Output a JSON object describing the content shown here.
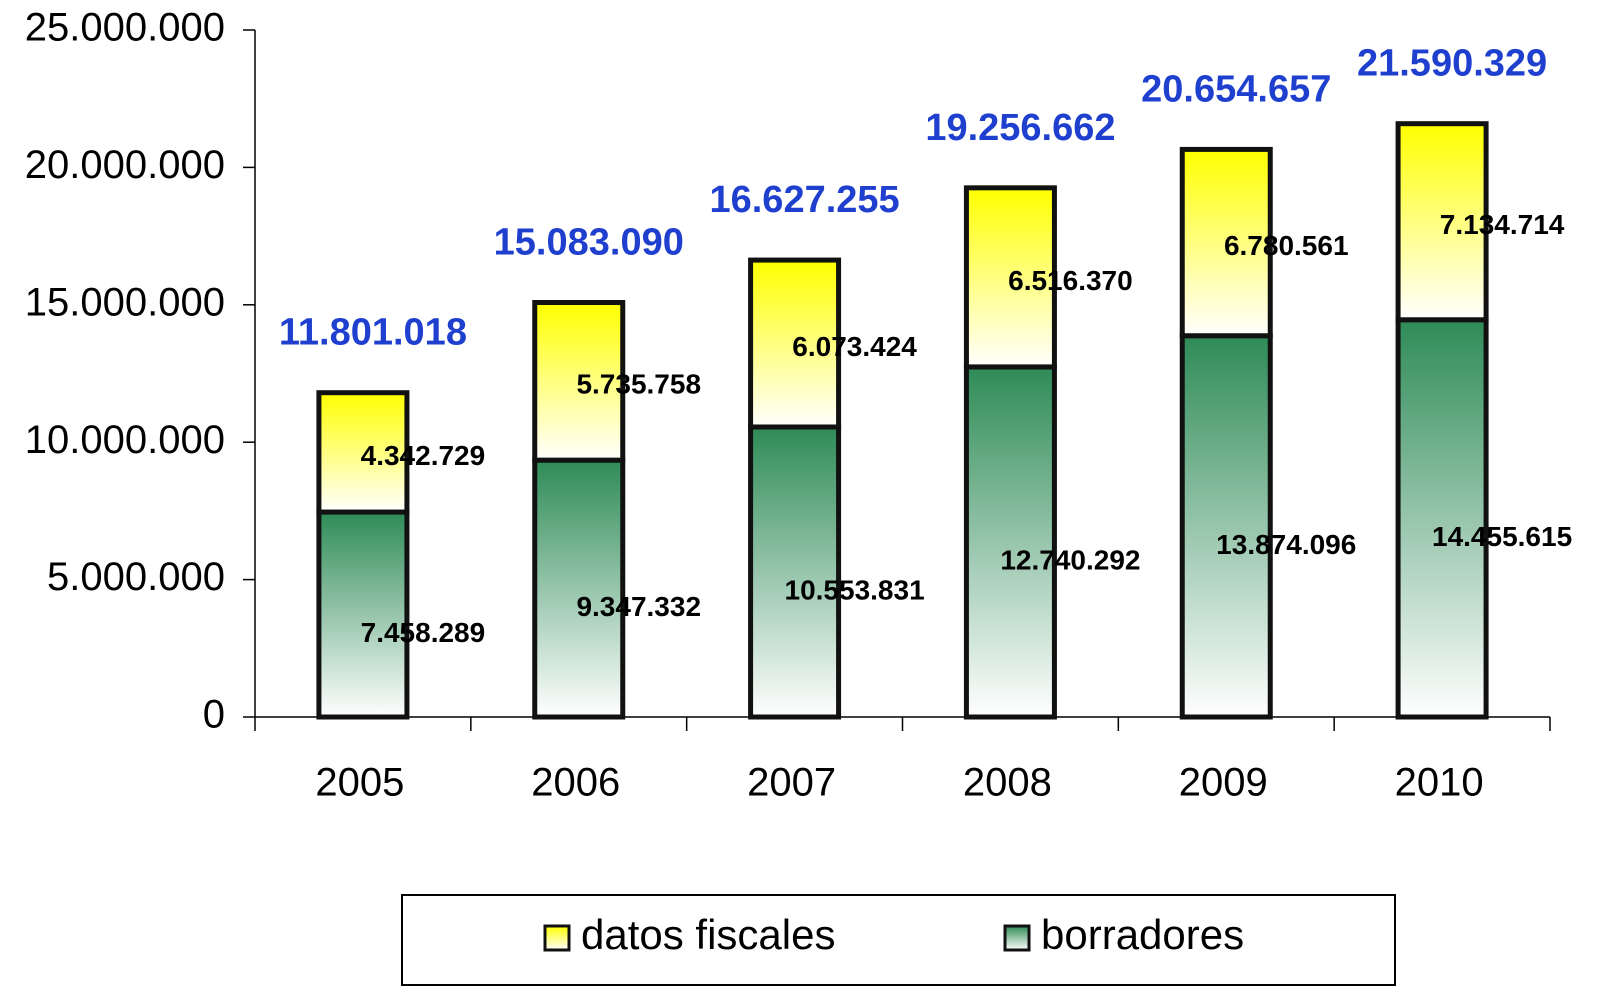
{
  "chart_data": {
    "type": "stacked_bar",
    "categories": [
      "2005",
      "2006",
      "2007",
      "2008",
      "2009",
      "2010"
    ],
    "series": [
      {
        "name": "borradores",
        "color": "#2e8b57",
        "values": [
          7458289,
          9347332,
          10553831,
          12740292,
          13874096,
          14455615
        ],
        "value_labels": [
          "7.458.289",
          "9.347.332",
          "10.553.831",
          "12.740.292",
          "13.874.096",
          "14.455.615"
        ]
      },
      {
        "name": "datos fiscales",
        "color": "#ffff00",
        "values": [
          4342729,
          5735758,
          6073424,
          6516370,
          6780561,
          7134714
        ],
        "value_labels": [
          "4.342.729",
          "5.735.758",
          "6.073.424",
          "6.516.370",
          "6.780.561",
          "7.134.714"
        ]
      }
    ],
    "totals": [
      11801018,
      15083090,
      16627255,
      19256662,
      20654657,
      21590329
    ],
    "total_labels": [
      "11.801.018",
      "15.083.090",
      "16.627.255",
      "19.256.662",
      "20.654.657",
      "21.590.329"
    ],
    "ylim": [
      0,
      25000000
    ],
    "yticks": [
      0,
      {
        "value": 5000000,
        "label": "5.000.000"
      },
      {
        "value": 10000000,
        "label": "10.000.000"
      },
      {
        "value": 15000000,
        "label": "15.000.000"
      },
      {
        "value": 20000000,
        "label": "20.000.000"
      },
      {
        "value": 25000000,
        "label": "25.000.000"
      }
    ],
    "grid": false,
    "legend": "bottom"
  }
}
